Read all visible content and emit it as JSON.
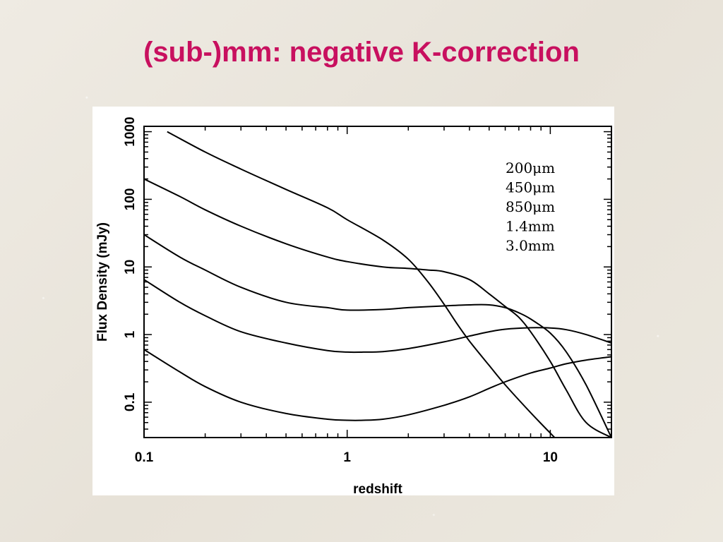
{
  "slide": {
    "title": "(sub-)mm: negative K-correction"
  },
  "chart_data": {
    "type": "line",
    "xscale": "log",
    "yscale": "log",
    "xlim": [
      0.1,
      20
    ],
    "ylim": [
      0.03,
      1200
    ],
    "xlabel": "redshift",
    "ylabel": "Flux Density (mJy)",
    "xticks": [
      {
        "value": 0.1,
        "label": "0.1"
      },
      {
        "value": 1,
        "label": "1"
      },
      {
        "value": 10,
        "label": "10"
      }
    ],
    "yticks": [
      {
        "value": 0.1,
        "label": "0.1"
      },
      {
        "value": 1,
        "label": "1"
      },
      {
        "value": 10,
        "label": "10"
      },
      {
        "value": 100,
        "label": "100"
      },
      {
        "value": 1000,
        "label": "1000"
      }
    ],
    "legend_position": "top-right",
    "series": [
      {
        "name": "200μm",
        "x": [
          0.13,
          0.2,
          0.3,
          0.5,
          0.8,
          1,
          1.5,
          2,
          2.5,
          3,
          3.5,
          4,
          5,
          6,
          8,
          10.5
        ],
        "y": [
          1000,
          500,
          280,
          140,
          75,
          50,
          25,
          13,
          6,
          2.8,
          1.4,
          0.8,
          0.35,
          0.18,
          0.07,
          0.03
        ]
      },
      {
        "name": "450μm",
        "x": [
          0.1,
          0.15,
          0.2,
          0.3,
          0.5,
          0.8,
          1,
          1.5,
          2,
          2.5,
          3,
          4,
          5,
          6,
          7,
          8,
          10,
          12,
          15,
          20
        ],
        "y": [
          200,
          110,
          70,
          40,
          22,
          14,
          12,
          10,
          9.5,
          9,
          8.5,
          6.5,
          4,
          2.6,
          1.8,
          1.1,
          0.4,
          0.15,
          0.05,
          0.03
        ]
      },
      {
        "name": "850μm",
        "x": [
          0.1,
          0.15,
          0.2,
          0.3,
          0.5,
          0.8,
          1,
          1.5,
          2,
          3,
          4,
          5,
          6,
          7,
          8,
          10,
          12,
          15,
          20
        ],
        "y": [
          30,
          14,
          9,
          5,
          3,
          2.5,
          2.3,
          2.35,
          2.5,
          2.65,
          2.75,
          2.75,
          2.5,
          2.1,
          1.7,
          1.05,
          0.55,
          0.18,
          0.03
        ]
      },
      {
        "name": "1.4mm",
        "x": [
          0.1,
          0.15,
          0.2,
          0.3,
          0.5,
          0.8,
          1,
          1.2,
          1.5,
          2,
          3,
          4,
          5,
          6,
          8,
          10,
          12,
          15,
          20
        ],
        "y": [
          6.5,
          3,
          1.9,
          1.1,
          0.75,
          0.58,
          0.55,
          0.55,
          0.56,
          0.62,
          0.78,
          0.95,
          1.1,
          1.2,
          1.26,
          1.25,
          1.18,
          1.0,
          0.75
        ]
      },
      {
        "name": "3.0mm",
        "x": [
          0.1,
          0.15,
          0.2,
          0.3,
          0.5,
          0.8,
          1,
          1.2,
          1.5,
          2,
          3,
          4,
          5,
          6,
          8,
          10,
          12,
          15,
          20
        ],
        "y": [
          0.6,
          0.28,
          0.17,
          0.1,
          0.068,
          0.056,
          0.054,
          0.054,
          0.056,
          0.065,
          0.09,
          0.12,
          0.16,
          0.2,
          0.27,
          0.32,
          0.37,
          0.42,
          0.47
        ]
      }
    ]
  }
}
